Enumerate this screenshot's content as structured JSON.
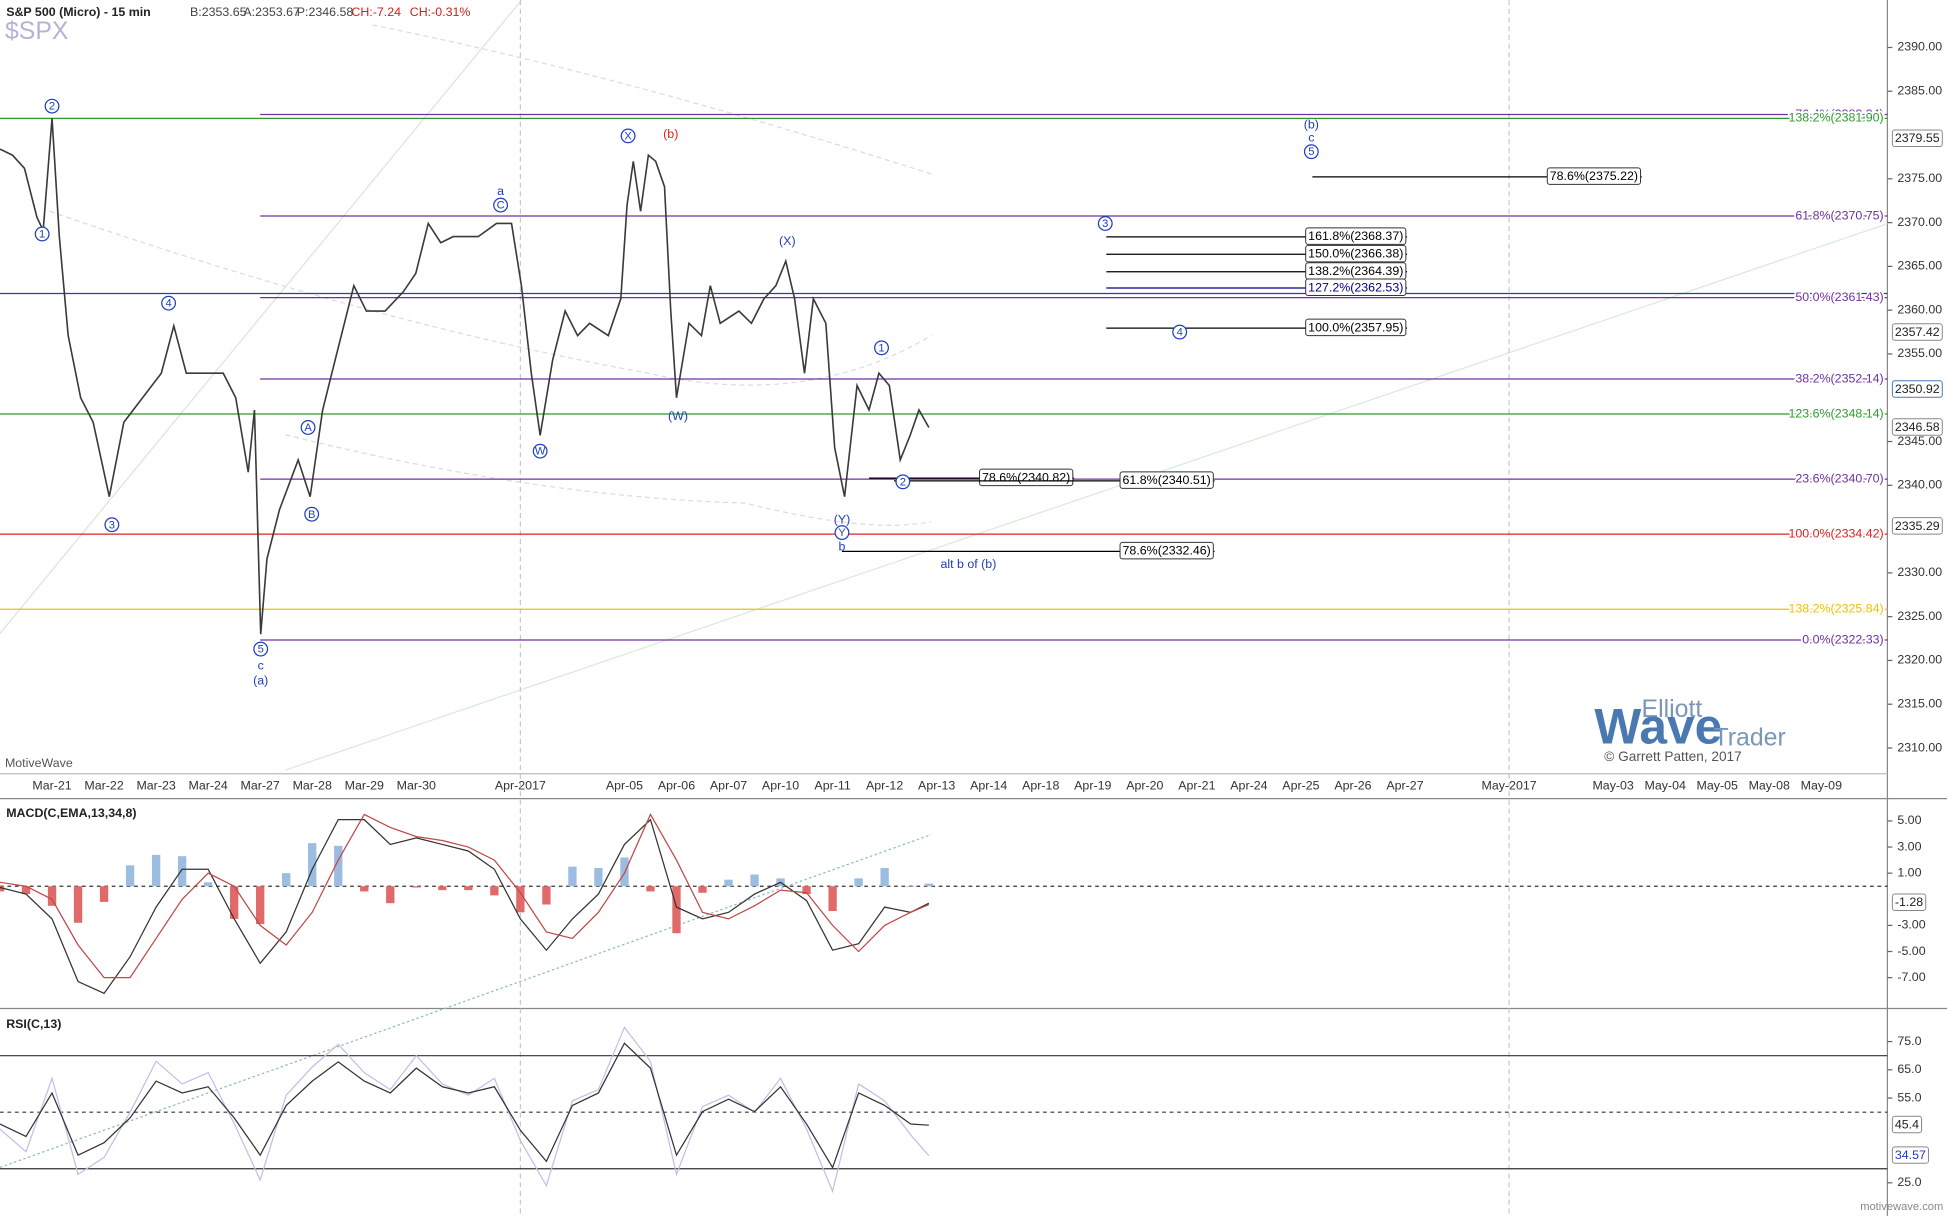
{
  "header": {
    "symbol": "S&P 500 (Micro) - 15 min",
    "bid": "B:2353.65",
    "ask": "A:2353.67",
    "price": "P:2346.58",
    "change": "CH:-7.24",
    "change_pct": "CH:-0.31%",
    "ticker": "$SPX"
  },
  "watermark": {
    "line1": "Elliott",
    "line2": "Wave",
    "line3": "Trader",
    "copyright": "© Garrett Patten, 2017",
    "platform": "MotiveWave",
    "site": "motivewave.com"
  },
  "chart_data": [
    {
      "type": "line",
      "categories": [
        "Mar-21",
        "Mar-22",
        "Mar-23",
        "Mar-24",
        "Mar-27",
        "Mar-28",
        "Mar-29",
        "Mar-30",
        null,
        "Apr-2017",
        null,
        "Apr-05",
        "Apr-06",
        "Apr-07",
        "Apr-10",
        "Apr-11",
        "Apr-12",
        "Apr-13",
        "Apr-14",
        "Apr-18",
        "Apr-19",
        "Apr-20",
        "Apr-21",
        "Apr-24",
        "Apr-25",
        "Apr-26",
        "Apr-27",
        null,
        "May-2017",
        null,
        "May-03",
        "May-04",
        "May-05",
        "May-08",
        "May-09"
      ],
      "xlim": [
        -1.0,
        35.27
      ],
      "ylim": [
        2307.2,
        2395.4
      ],
      "yticks": [
        {
          "value": 2310,
          "label": "2310.00"
        },
        {
          "value": 2315,
          "label": "2315.00"
        },
        {
          "value": 2320,
          "label": "2320.00"
        },
        {
          "value": 2325,
          "label": "2325.00"
        },
        {
          "value": 2330,
          "label": "2330.00"
        },
        {
          "value": 2340,
          "label": "2340.00"
        },
        {
          "value": 2345,
          "label": "2345.00"
        },
        {
          "value": 2355,
          "label": "2355.00"
        },
        {
          "value": 2360,
          "label": "2360.00"
        },
        {
          "value": 2365,
          "label": "2365.00"
        },
        {
          "value": 2370,
          "label": "2370.00"
        },
        {
          "value": 2375,
          "label": "2375.00"
        },
        {
          "value": 2385,
          "label": "2385.00"
        },
        {
          "value": 2390,
          "label": "2390.00"
        }
      ],
      "x": [
        -1.0,
        -0.76,
        -0.53,
        -0.29,
        -0.17,
        0,
        0.14,
        0.31,
        0.55,
        0.79,
        1.1,
        1.38,
        1.74,
        2.1,
        2.34,
        2.58,
        2.94,
        3.29,
        3.53,
        3.77,
        3.89,
        4.01,
        4.13,
        4.37,
        4.73,
        4.96,
        5.2,
        5.44,
        5.8,
        6.04,
        6.4,
        6.75,
        6.99,
        7.23,
        7.47,
        7.71,
        7.95,
        8.19,
        8.54,
        8.83,
        9.02,
        9.21,
        9.38,
        9.62,
        9.86,
        10.1,
        10.33,
        10.69,
        10.93,
        11.05,
        11.17,
        11.31,
        11.46,
        11.6,
        11.77,
        11.89,
        12.0,
        12.24,
        12.48,
        12.65,
        12.84,
        13.2,
        13.44,
        13.68,
        13.91,
        14.1,
        14.27,
        14.46,
        14.63,
        14.87,
        15.04,
        15.23,
        15.47,
        15.7,
        15.89,
        16.09,
        16.3,
        16.49,
        16.66,
        16.85
      ],
      "series": [
        {
          "color": "#3a3a3a",
          "values": [
            2378.4,
            2377.7,
            2376.2,
            2370.6,
            2369.1,
            2381.9,
            2368.4,
            2357.1,
            2350.0,
            2347.2,
            2338.7,
            2347.2,
            2350.0,
            2352.8,
            2358.2,
            2352.8,
            2352.8,
            2352.8,
            2350.0,
            2341.5,
            2348.6,
            2323.0,
            2331.6,
            2337.2,
            2342.9,
            2338.7,
            2348.6,
            2354.3,
            2362.8,
            2359.9,
            2359.9,
            2362.1,
            2364.2,
            2369.9,
            2367.7,
            2368.4,
            2368.4,
            2368.4,
            2369.9,
            2369.9,
            2362.8,
            2352.8,
            2345.7,
            2354.3,
            2359.9,
            2357.1,
            2358.5,
            2357.1,
            2361.3,
            2372.0,
            2377.0,
            2371.3,
            2377.7,
            2377.0,
            2374.1,
            2359.9,
            2350.0,
            2358.5,
            2357.1,
            2362.8,
            2358.5,
            2359.9,
            2358.5,
            2361.3,
            2362.8,
            2365.6,
            2361.3,
            2352.8,
            2361.3,
            2358.5,
            2344.3,
            2338.7,
            2351.4,
            2348.6,
            2352.8,
            2351.4,
            2342.9,
            2345.7,
            2348.6,
            2346.6
          ]
        }
      ],
      "levels": [
        {
          "label": "76.4%(2382.34)",
          "value": 2382.34,
          "color": "#7030a0",
          "from": 4.0
        },
        {
          "label": "138.2%(2381.90)",
          "value": 2381.9,
          "color": "#2e9a2e"
        },
        {
          "label": "61.8%(2370.75)",
          "value": 2370.75,
          "color": "#7030a0",
          "from": 4.0
        },
        {
          "value": 2361.9,
          "color": "#1f3fbf"
        },
        {
          "label": "50.0%(2361.43)",
          "value": 2361.43,
          "color": "#7030a0",
          "from": 4.0
        },
        {
          "label": "38.2%(2352.14)",
          "value": 2352.14,
          "color": "#7030a0",
          "from": 4.0
        },
        {
          "label": "123.6%(2348.14)",
          "value": 2348.14,
          "color": "#2e9a2e"
        },
        {
          "label": "23.6%(2340.70)",
          "value": 2340.7,
          "color": "#7030a0",
          "from": 4.0
        },
        {
          "label": "100.0%(2334.42)",
          "value": 2334.42,
          "color": "#e02020"
        },
        {
          "label": "138.2%(2325.84)",
          "value": 2325.84,
          "color": "#f0c000"
        },
        {
          "label": "0.0%(2322.33)",
          "value": 2322.33,
          "color": "#7030a0",
          "from": 4.0
        }
      ],
      "targets": [
        {
          "label": "78.6%(2375.22)",
          "value": 2375.22,
          "x": [
            24.22,
            30.55
          ],
          "color": "#000000"
        },
        {
          "label": "161.8%(2368.37)",
          "value": 2368.37,
          "x": [
            20.26,
            26.04
          ],
          "color": "#000000"
        },
        {
          "label": "150.0%(2366.38)",
          "value": 2366.38,
          "x": [
            20.26,
            26.04
          ],
          "color": "#000000"
        },
        {
          "label": "138.2%(2364.39)",
          "value": 2364.39,
          "x": [
            20.26,
            26.04
          ],
          "color": "#000000"
        },
        {
          "label": "127.2%(2362.53)",
          "value": 2362.53,
          "x": [
            20.26,
            26.04
          ],
          "color": "#000080"
        },
        {
          "label": "100.0%(2357.95)",
          "value": 2357.95,
          "x": [
            20.26,
            26.04
          ],
          "color": "#000000"
        },
        {
          "label": "78.6%(2340.82)",
          "value": 2340.82,
          "x": [
            15.7,
            19.64
          ],
          "color": "#000000"
        },
        {
          "label": "61.8%(2340.51)",
          "value": 2340.51,
          "x": [
            16.18,
            22.34
          ],
          "color": "#000000"
        },
        {
          "label": "78.6%(2332.46)",
          "value": 2332.46,
          "x": [
            15.18,
            22.34
          ],
          "color": "#000000"
        }
      ],
      "waves": [
        {
          "text": "2",
          "x": 0,
          "y": 2383.3,
          "color": "#1f3fbf",
          "circled": true
        },
        {
          "text": "1",
          "x": -0.19,
          "y": 2368.7,
          "color": "#1f3fbf",
          "circled": true
        },
        {
          "text": "4",
          "x": 2.24,
          "y": 2360.8,
          "color": "#1f3fbf",
          "circled": true
        },
        {
          "text": "3",
          "x": 1.15,
          "y": 2335.5,
          "color": "#1f3fbf",
          "circled": true
        },
        {
          "text": "5",
          "x": 4.01,
          "y": 2321.3,
          "color": "#1f3fbf",
          "circled": true
        },
        {
          "text": "c",
          "x": 4.01,
          "y": 2319.4,
          "color": "#1f3fbf"
        },
        {
          "text": "(a)",
          "x": 4.01,
          "y": 2317.7,
          "color": "#1f3fbf"
        },
        {
          "text": "A",
          "x": 4.92,
          "y": 2346.6,
          "color": "#1f3fbf",
          "circled": true
        },
        {
          "text": "B",
          "x": 4.99,
          "y": 2336.7,
          "color": "#1f3fbf",
          "circled": true
        },
        {
          "text": "a",
          "x": 8.62,
          "y": 2373.6,
          "color": "#1f3fbf"
        },
        {
          "text": "C",
          "x": 8.62,
          "y": 2372.0,
          "color": "#1f3fbf",
          "circled": true
        },
        {
          "text": "W",
          "x": 9.38,
          "y": 2343.9,
          "color": "#1f3fbf",
          "circled": true
        },
        {
          "text": "X",
          "x": 11.07,
          "y": 2379.9,
          "color": "#1f3fbf",
          "circled": true
        },
        {
          "text": "(b)",
          "x": 11.89,
          "y": 2380.1,
          "color": "#e02020"
        },
        {
          "text": "(W)",
          "x": 12.03,
          "y": 2347.9,
          "color": "#1f3fbf"
        },
        {
          "text": "(X)",
          "x": 14.13,
          "y": 2367.9,
          "color": "#1f3fbf"
        },
        {
          "text": "(Y)",
          "x": 15.18,
          "y": 2336.1,
          "color": "#1f3fbf"
        },
        {
          "text": "Y",
          "x": 15.18,
          "y": 2334.6,
          "color": "#1f3fbf",
          "circled": true
        },
        {
          "text": "b",
          "x": 15.18,
          "y": 2333.0,
          "color": "#1f3fbf"
        },
        {
          "text": "1",
          "x": 15.94,
          "y": 2355.7,
          "color": "#1f3fbf",
          "circled": true
        },
        {
          "text": "2",
          "x": 16.35,
          "y": 2340.4,
          "color": "#1f3fbf",
          "circled": true
        },
        {
          "text": "3",
          "x": 20.24,
          "y": 2369.9,
          "color": "#1f3fbf",
          "circled": true
        },
        {
          "text": "4",
          "x": 21.67,
          "y": 2357.5,
          "color": "#1f3fbf",
          "circled": true
        },
        {
          "text": "(b)",
          "x": 24.2,
          "y": 2381.2,
          "color": "#1f3fbf"
        },
        {
          "text": "c",
          "x": 24.2,
          "y": 2379.7,
          "color": "#1f3fbf"
        },
        {
          "text": "5",
          "x": 24.2,
          "y": 2378.1,
          "color": "#1f3fbf",
          "circled": true
        },
        {
          "text": "alt b of (b)",
          "x": 17.61,
          "y": 2331.0,
          "color": "#1f3fbf"
        }
      ],
      "price_tags": [
        2379.55,
        2357.42,
        2350.92,
        2346.58,
        2335.29
      ]
    },
    {
      "type": "line",
      "title": "MACD(C,EMA,13,34,8)",
      "ylim": [
        -9.17,
        6.52
      ],
      "yticks": [
        {
          "value": 5,
          "label": "5.00"
        },
        {
          "value": 3,
          "label": "3.00"
        },
        {
          "value": 1,
          "label": "1.00"
        },
        {
          "value": -3,
          "label": "-3.00"
        },
        {
          "value": -5,
          "label": "-5.00"
        },
        {
          "value": -7,
          "label": "-7.00"
        }
      ],
      "zero_line": true,
      "x": [
        -1,
        -0.5,
        0,
        0.5,
        1,
        1.5,
        2,
        2.5,
        3,
        3.5,
        4,
        4.5,
        5,
        5.5,
        6,
        6.5,
        7,
        7.5,
        8,
        8.5,
        9,
        9.5,
        10,
        10.5,
        11,
        11.5,
        12,
        12.5,
        13,
        13.5,
        14,
        14.5,
        15,
        15.5,
        16,
        16.5,
        16.85
      ],
      "histogram": {
        "positive_color": "#9dbde0",
        "negative_color": "#e06a6a",
        "values": [
          -0.4,
          -0.6,
          -1.5,
          -2.8,
          -1.2,
          1.6,
          2.4,
          2.3,
          0.3,
          -2.5,
          -2.9,
          1.0,
          3.3,
          3.1,
          -0.4,
          -1.3,
          -0.1,
          -0.3,
          -0.3,
          -0.7,
          -2.0,
          -1.4,
          1.5,
          1.4,
          2.2,
          -0.4,
          -3.6,
          -0.5,
          0.5,
          0.9,
          0.6,
          -0.6,
          -1.9,
          0.6,
          1.4,
          0.0,
          0.2
        ]
      },
      "series": [
        {
          "color": "#333333",
          "values": [
            -0.1,
            -0.6,
            -2.5,
            -7.3,
            -8.2,
            -5.4,
            -1.6,
            1.3,
            1.3,
            -2.5,
            -5.9,
            -3.5,
            1.3,
            5.1,
            5.1,
            3.2,
            3.7,
            3.2,
            2.7,
            1.3,
            -2.5,
            -4.9,
            -2.5,
            -0.6,
            3.2,
            5.1,
            -1.6,
            -2.5,
            -2.0,
            -0.6,
            0.3,
            -1.1,
            -4.9,
            -4.4,
            -1.6,
            -2.0,
            -1.3
          ]
        },
        {
          "color": "#c04848",
          "values": [
            0.3,
            0.0,
            -1.0,
            -4.5,
            -7.0,
            -7.0,
            -4.0,
            -1.0,
            1.0,
            0.0,
            -3.0,
            -4.5,
            -2.0,
            2.0,
            5.5,
            4.5,
            3.8,
            3.5,
            3.0,
            2.0,
            -0.5,
            -3.5,
            -4.0,
            -2.0,
            1.0,
            5.5,
            2.0,
            -2.0,
            -2.5,
            -1.5,
            -0.3,
            -0.5,
            -3.0,
            -5.0,
            -3.0,
            -2.0,
            -1.4
          ]
        }
      ],
      "tags": [
        -1.28
      ]
    },
    {
      "type": "line",
      "title": "RSI(C,13)",
      "ylim": [
        14.2,
        85.4
      ],
      "yticks": [
        {
          "value": 75,
          "label": "75.0"
        },
        {
          "value": 65,
          "label": "65.0"
        },
        {
          "value": 55,
          "label": "55.0"
        },
        {
          "value": 25,
          "label": "25.0"
        }
      ],
      "levels": [
        70,
        30
      ],
      "midline": 50,
      "x": [
        -1,
        -0.5,
        0,
        0.5,
        1,
        1.5,
        2,
        2.5,
        3,
        3.5,
        4,
        4.5,
        5,
        5.5,
        6,
        6.5,
        7,
        7.5,
        8,
        8.5,
        9,
        9.5,
        10,
        10.5,
        11,
        11.5,
        12,
        12.5,
        13,
        13.5,
        14,
        14.5,
        15,
        15.5,
        16,
        16.5,
        16.85
      ],
      "series": [
        {
          "color": "#c0c0e8",
          "values": [
            44,
            36,
            62,
            28,
            34,
            50,
            68,
            60,
            64,
            46,
            26,
            56,
            66,
            74,
            64,
            58,
            70,
            60,
            56,
            62,
            40,
            24,
            54,
            58,
            80,
            68,
            28,
            52,
            56,
            50,
            62,
            44,
            22,
            60,
            54,
            42,
            34.57
          ]
        },
        {
          "color": "#333333",
          "values": [
            45.8,
            41.4,
            56.8,
            34.8,
            39.2,
            48,
            61,
            56.8,
            59,
            48,
            34.8,
            52.4,
            61,
            67.8,
            61,
            56.8,
            65.6,
            59,
            56.8,
            59,
            43.6,
            32.6,
            52.4,
            56.8,
            74.4,
            65.6,
            34.8,
            50.2,
            54.6,
            50.2,
            59,
            45.8,
            30.4,
            56.8,
            52.4,
            45.8,
            45.4
          ]
        }
      ],
      "tags": [
        45.4,
        34.57
      ]
    }
  ]
}
